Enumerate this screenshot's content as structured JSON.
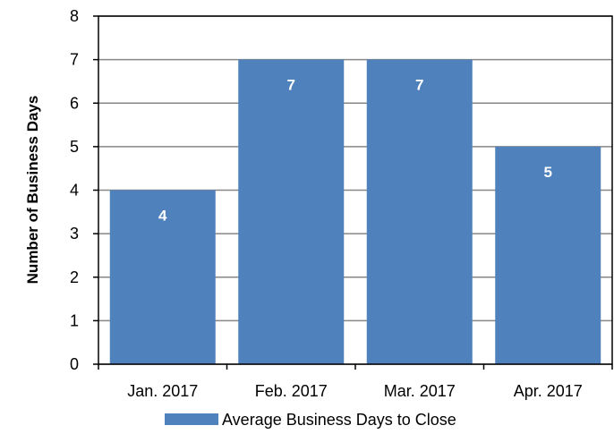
{
  "chart_data": {
    "type": "bar",
    "categories": [
      "Jan. 2017",
      "Feb. 2017",
      "Mar. 2017",
      "Apr. 2017"
    ],
    "series": [
      {
        "name": "Average Business Days to Close",
        "values": [
          4,
          7,
          7,
          5
        ],
        "color": "#4f81bd"
      }
    ],
    "data_labels": [
      "4",
      "7",
      "7",
      "5"
    ],
    "y_ticks": [
      "0",
      "1",
      "2",
      "3",
      "4",
      "5",
      "6",
      "7",
      "8"
    ],
    "ylim": [
      0,
      8
    ],
    "ylabel": "Number of Business Days",
    "xlabel": "",
    "grid": true,
    "legend_position": "bottom"
  },
  "legend": {
    "label": "Average Business Days to Close",
    "color": "#4f81bd"
  }
}
